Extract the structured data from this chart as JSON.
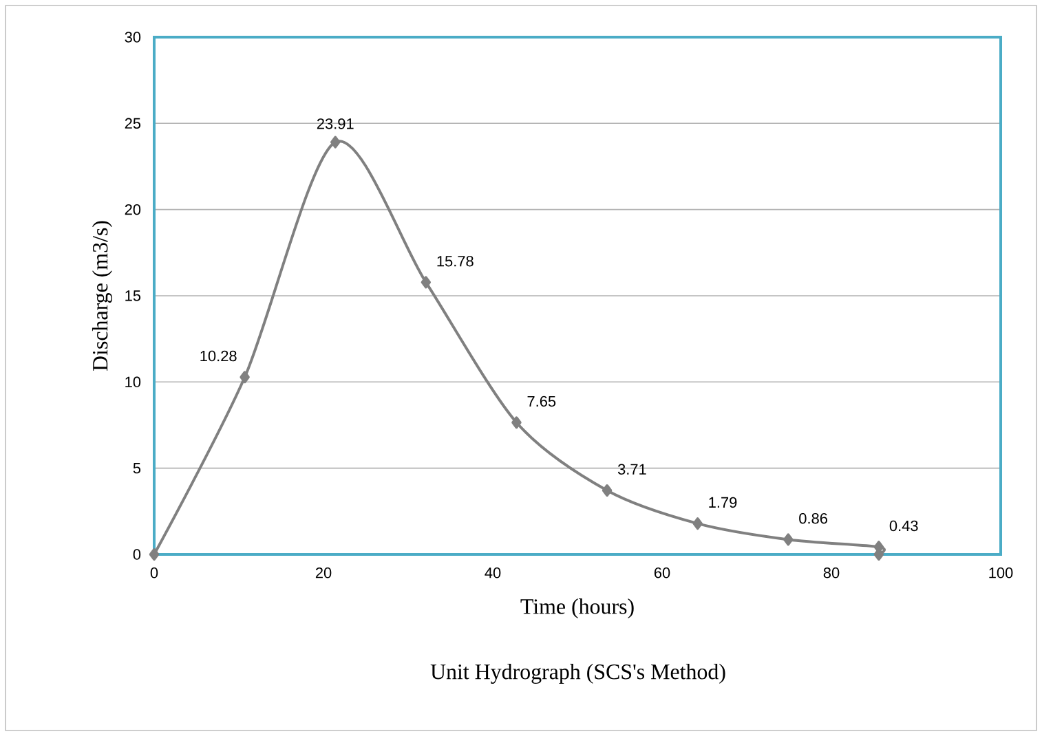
{
  "chart_data": {
    "type": "line",
    "title": "Unit Hydrograph (SCS's Method)",
    "xlabel": "Time (hours)",
    "ylabel": "Discharge (m3/s)",
    "x": [
      0,
      10.7,
      21.4,
      32.1,
      42.8,
      53.5,
      64.2,
      74.9,
      85.6,
      85.6
    ],
    "series": [
      {
        "color": "#808080",
        "values": [
          0,
          10.28,
          23.91,
          15.78,
          7.65,
          3.71,
          1.79,
          0.86,
          0.43,
          0
        ],
        "value_labels": [
          null,
          "10.28",
          "23.91",
          "15.78",
          "7.65",
          "3.71",
          "1.79",
          "0.86",
          "0.43",
          null
        ]
      }
    ],
    "xlim": [
      0,
      100
    ],
    "xticks": [
      0,
      20,
      40,
      60,
      80,
      100
    ],
    "ylim": [
      0,
      30
    ],
    "yticks": [
      0,
      5,
      10,
      15,
      20,
      25,
      30
    ],
    "grid": "y",
    "marker": "diamond",
    "line_style": "solid"
  }
}
